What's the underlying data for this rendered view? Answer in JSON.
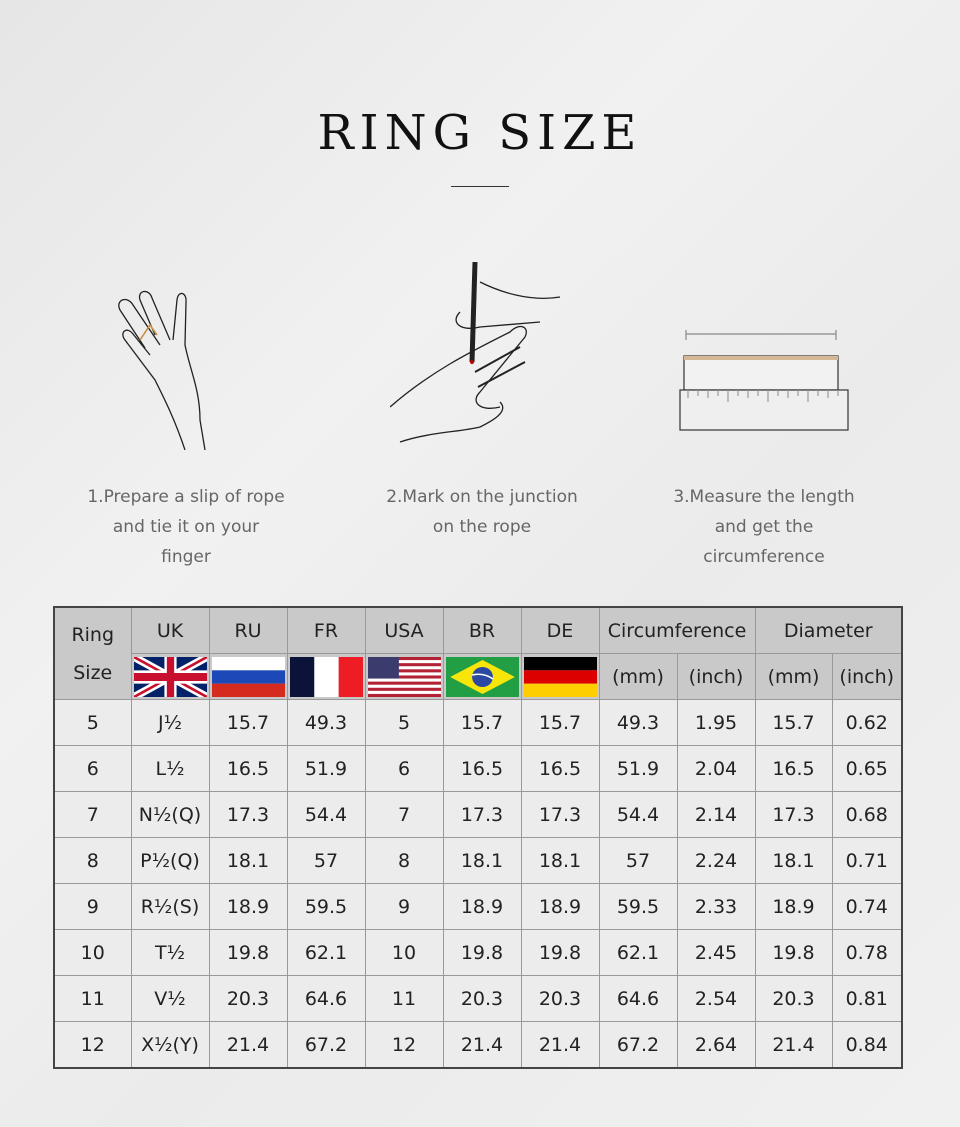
{
  "title": "RING SIZE",
  "steps": [
    {
      "icon": "hand-with-rope-icon",
      "lines": [
        "1.Prepare a slip of rope",
        "and tie it on your",
        "finger"
      ]
    },
    {
      "icon": "hand-marking-pen-icon",
      "lines": [
        "2.Mark on the junction",
        "on the rope"
      ]
    },
    {
      "icon": "ruler-measure-icon",
      "lines": [
        "3.Measure the length",
        "and get the",
        "circumference"
      ]
    }
  ],
  "table": {
    "ring_size_header": [
      "Ring",
      "Size"
    ],
    "countries": [
      "UK",
      "RU",
      "FR",
      "USA",
      "BR",
      "DE"
    ],
    "flags": [
      "uk-flag",
      "russia-flag",
      "france-flag",
      "usa-flag",
      "brazil-flag",
      "germany-flag"
    ],
    "circumference_header": "Circumference",
    "diameter_header": "Diameter",
    "units": [
      "(mm)",
      "(inch)",
      "(mm)",
      "(inch)"
    ],
    "rows": [
      [
        "5",
        "J½",
        "15.7",
        "49.3",
        "5",
        "15.7",
        "15.7",
        "49.3",
        "1.95",
        "15.7",
        "0.62"
      ],
      [
        "6",
        "L½",
        "16.5",
        "51.9",
        "6",
        "16.5",
        "16.5",
        "51.9",
        "2.04",
        "16.5",
        "0.65"
      ],
      [
        "7",
        "N½(Q)",
        "17.3",
        "54.4",
        "7",
        "17.3",
        "17.3",
        "54.4",
        "2.14",
        "17.3",
        "0.68"
      ],
      [
        "8",
        "P½(Q)",
        "18.1",
        "57",
        "8",
        "18.1",
        "18.1",
        "57",
        "2.24",
        "18.1",
        "0.71"
      ],
      [
        "9",
        "R½(S)",
        "18.9",
        "59.5",
        "9",
        "18.9",
        "18.9",
        "59.5",
        "2.33",
        "18.9",
        "0.74"
      ],
      [
        "10",
        "T½",
        "19.8",
        "62.1",
        "10",
        "19.8",
        "19.8",
        "62.1",
        "2.45",
        "19.8",
        "0.78"
      ],
      [
        "11",
        "V½",
        "20.3",
        "64.6",
        "11",
        "20.3",
        "20.3",
        "64.6",
        "2.54",
        "20.3",
        "0.81"
      ],
      [
        "12",
        "X½(Y)",
        "21.4",
        "67.2",
        "12",
        "21.4",
        "21.4",
        "67.2",
        "2.64",
        "21.4",
        "0.84"
      ]
    ]
  }
}
